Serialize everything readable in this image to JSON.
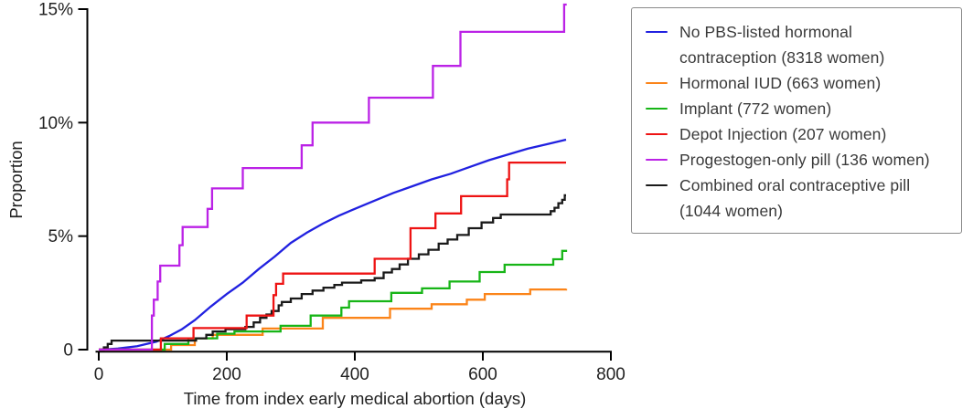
{
  "figure": {
    "background": "#ffffff",
    "axis_color": "#000000",
    "text_color": "#222222",
    "legend_border_color": "#8a8a8a",
    "legend_text_color": "#3a3a3a"
  },
  "chart_data": {
    "type": "line",
    "subtype": "kaplan-meier-cumulative-incidence-step-curves",
    "title": "",
    "xlabel": "Time from index early medical abortion (days)",
    "ylabel": "Proportion",
    "xlim": [
      0,
      800
    ],
    "ylim": [
      0,
      15
    ],
    "x_ticks": [
      0,
      200,
      400,
      600,
      800
    ],
    "x_tick_labels": [
      "0",
      "200",
      "400",
      "600",
      "800"
    ],
    "y_ticks": [
      0,
      5,
      10,
      15
    ],
    "y_tick_labels": [
      "0",
      "5%",
      "10%",
      "15%"
    ],
    "y_unit": "percent",
    "grid": false,
    "legend_position": "outside-right",
    "series": [
      {
        "name": "No PBS-listed hormonal contraception (8318 women)",
        "n_women": 8318,
        "color": "#2121e0",
        "line_style": "smooth",
        "points": [
          [
            0,
            0
          ],
          [
            30,
            0.05
          ],
          [
            60,
            0.15
          ],
          [
            90,
            0.35
          ],
          [
            110,
            0.6
          ],
          [
            130,
            0.9
          ],
          [
            150,
            1.3
          ],
          [
            175,
            1.9
          ],
          [
            200,
            2.45
          ],
          [
            225,
            2.95
          ],
          [
            250,
            3.55
          ],
          [
            275,
            4.1
          ],
          [
            300,
            4.7
          ],
          [
            325,
            5.15
          ],
          [
            350,
            5.55
          ],
          [
            375,
            5.9
          ],
          [
            400,
            6.2
          ],
          [
            430,
            6.55
          ],
          [
            460,
            6.9
          ],
          [
            490,
            7.2
          ],
          [
            520,
            7.5
          ],
          [
            550,
            7.75
          ],
          [
            580,
            8.05
          ],
          [
            610,
            8.35
          ],
          [
            640,
            8.6
          ],
          [
            670,
            8.85
          ],
          [
            700,
            9.05
          ],
          [
            730,
            9.25
          ]
        ]
      },
      {
        "name": "Hormonal IUD (663 women)",
        "n_women": 663,
        "color": "#fb8419",
        "line_style": "step",
        "points": [
          [
            0,
            0
          ],
          [
            113,
            0.2
          ],
          [
            150,
            0.5
          ],
          [
            178,
            0.65
          ],
          [
            256,
            0.93
          ],
          [
            350,
            1.4
          ],
          [
            455,
            1.8
          ],
          [
            520,
            2.0
          ],
          [
            575,
            2.2
          ],
          [
            603,
            2.45
          ],
          [
            674,
            2.65
          ],
          [
            730,
            2.68
          ]
        ]
      },
      {
        "name": "Implant (772 women)",
        "n_women": 772,
        "color": "#17b517",
        "line_style": "step",
        "points": [
          [
            0,
            0
          ],
          [
            103,
            0.25
          ],
          [
            140,
            0.5
          ],
          [
            185,
            0.7
          ],
          [
            212,
            0.8
          ],
          [
            284,
            1.05
          ],
          [
            331,
            1.5
          ],
          [
            379,
            1.85
          ],
          [
            391,
            2.13
          ],
          [
            457,
            2.5
          ],
          [
            505,
            2.7
          ],
          [
            548,
            3.0
          ],
          [
            595,
            3.42
          ],
          [
            634,
            3.74
          ],
          [
            710,
            3.98
          ],
          [
            724,
            4.35
          ],
          [
            730,
            4.4
          ]
        ]
      },
      {
        "name": "Depot Injection (207 women)",
        "n_women": 207,
        "color": "#ee1313",
        "line_style": "step",
        "points": [
          [
            0,
            0
          ],
          [
            97,
            0.5
          ],
          [
            148,
            0.95
          ],
          [
            231,
            1.5
          ],
          [
            273,
            2.4
          ],
          [
            277,
            2.9
          ],
          [
            288,
            3.35
          ],
          [
            431,
            4.0
          ],
          [
            487,
            5.35
          ],
          [
            526,
            6.0
          ],
          [
            566,
            6.76
          ],
          [
            638,
            7.5
          ],
          [
            641,
            8.24
          ],
          [
            730,
            8.24
          ]
        ]
      },
      {
        "name": "Progestogen-only pill (136 women)",
        "n_women": 136,
        "color": "#bb22e6",
        "line_style": "step",
        "points": [
          [
            0,
            0
          ],
          [
            83,
            1.5
          ],
          [
            86,
            2.2
          ],
          [
            92,
            3.0
          ],
          [
            96,
            3.7
          ],
          [
            126,
            4.6
          ],
          [
            131,
            5.4
          ],
          [
            170,
            6.2
          ],
          [
            177,
            7.1
          ],
          [
            225,
            8.0
          ],
          [
            317,
            9.0
          ],
          [
            334,
            10.0
          ],
          [
            422,
            11.1
          ],
          [
            522,
            12.5
          ],
          [
            565,
            14.0
          ],
          [
            727,
            15.2
          ],
          [
            731,
            15.2
          ]
        ]
      },
      {
        "name": "Combined oral contraceptive pill (1044 women)",
        "n_women": 1044,
        "color": "#1a1a1a",
        "line_style": "step",
        "points": [
          [
            0,
            0
          ],
          [
            8,
            0.1
          ],
          [
            14,
            0.25
          ],
          [
            20,
            0.4
          ],
          [
            152,
            0.5
          ],
          [
            168,
            0.65
          ],
          [
            178,
            0.8
          ],
          [
            198,
            0.9
          ],
          [
            229,
            1.0
          ],
          [
            242,
            1.2
          ],
          [
            252,
            1.4
          ],
          [
            262,
            1.55
          ],
          [
            270,
            1.7
          ],
          [
            281,
            1.95
          ],
          [
            286,
            2.1
          ],
          [
            300,
            2.25
          ],
          [
            317,
            2.45
          ],
          [
            334,
            2.6
          ],
          [
            351,
            2.73
          ],
          [
            368,
            2.85
          ],
          [
            380,
            2.95
          ],
          [
            410,
            3.05
          ],
          [
            431,
            3.15
          ],
          [
            445,
            3.4
          ],
          [
            458,
            3.55
          ],
          [
            470,
            3.75
          ],
          [
            483,
            4.0
          ],
          [
            500,
            4.2
          ],
          [
            515,
            4.4
          ],
          [
            531,
            4.67
          ],
          [
            545,
            4.85
          ],
          [
            560,
            5.05
          ],
          [
            578,
            5.35
          ],
          [
            598,
            5.6
          ],
          [
            616,
            5.8
          ],
          [
            628,
            5.95
          ],
          [
            700,
            5.95
          ],
          [
            706,
            6.1
          ],
          [
            712,
            6.25
          ],
          [
            718,
            6.45
          ],
          [
            724,
            6.6
          ],
          [
            728,
            6.8
          ],
          [
            730,
            6.8
          ]
        ]
      }
    ]
  }
}
